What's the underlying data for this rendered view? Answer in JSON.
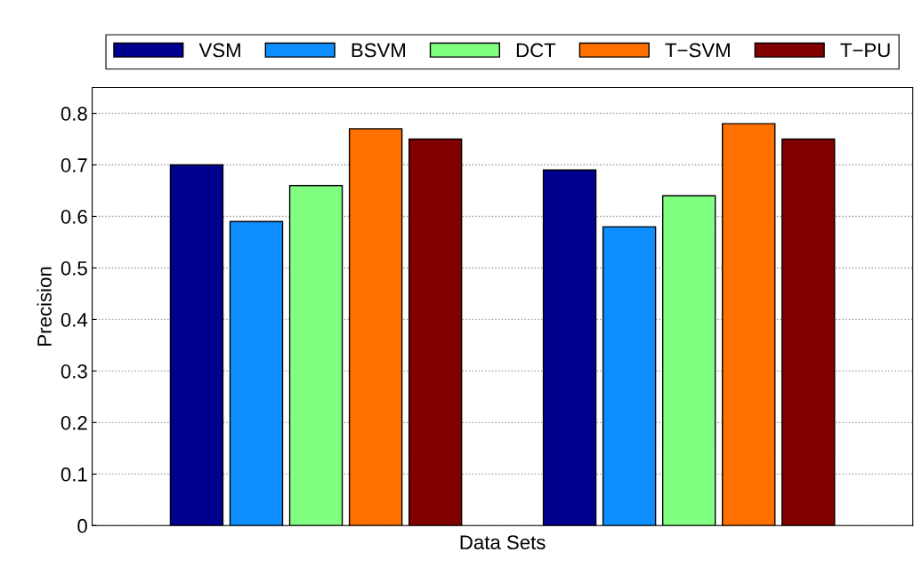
{
  "chart_data": {
    "type": "bar",
    "xlabel": "Data Sets",
    "ylabel": "Precision",
    "categories": [
      null,
      null
    ],
    "series": [
      {
        "name": "VSM",
        "color": "#00008f",
        "values": [
          0.7,
          0.69
        ]
      },
      {
        "name": "BSVM",
        "color": "#0f8fff",
        "values": [
          0.59,
          0.58
        ]
      },
      {
        "name": "DCT",
        "color": "#80ff80",
        "values": [
          0.66,
          0.64
        ]
      },
      {
        "name": "T−SVM",
        "color": "#ff7000",
        "values": [
          0.77,
          0.78
        ]
      },
      {
        "name": "T−PU",
        "color": "#800000",
        "values": [
          0.75,
          0.75
        ]
      }
    ],
    "ylim": [
      0,
      0.85
    ],
    "yticks": [
      0,
      0.1,
      0.2,
      0.3,
      0.4,
      0.5,
      0.6,
      0.7,
      0.8
    ],
    "grid": "y",
    "legend": "top"
  }
}
